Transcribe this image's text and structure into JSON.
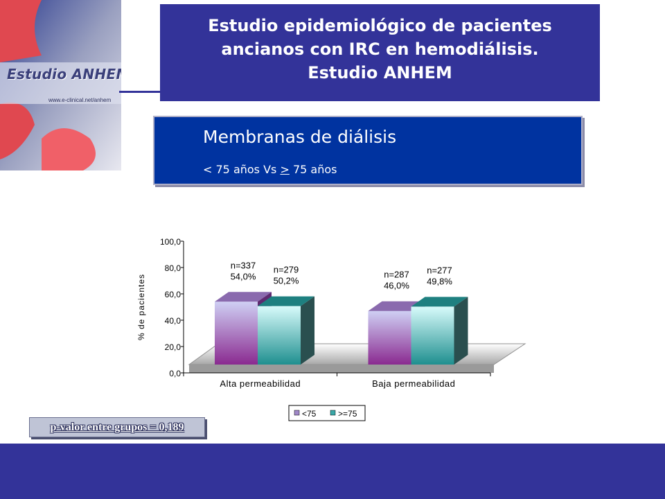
{
  "logo": {
    "title": "Estudio ANHEM",
    "url": "www.e-clinical.net/anhem"
  },
  "header": {
    "line1": "Estudio epidemiológico de pacientes",
    "line2": "ancianos con IRC en hemodiálisis.",
    "line3": "Estudio ANHEM"
  },
  "subtitle": {
    "main": "Membranas de diálisis",
    "sub_prefix": "< 75 años Vs ",
    "sub_underlined": ">",
    "sub_suffix": " 75 años"
  },
  "pvalue": "p-valor entre grupos = 0,189",
  "colors": {
    "header_bg": "#333399",
    "subtitle_bg": "#0033a0",
    "series_lt75": "#a88cd0",
    "series_ge75": "#3aa8a8"
  },
  "chart_data": {
    "type": "bar",
    "title": "",
    "xlabel": "",
    "ylabel": "% de pacientes",
    "ylim": [
      0,
      100
    ],
    "yticks": [
      "0,0",
      "20,0",
      "40,0",
      "60,0",
      "80,0",
      "100,0"
    ],
    "categories": [
      "Alta permeabilidad",
      "Baja permeabilidad"
    ],
    "series": [
      {
        "name": "<75",
        "values": [
          54.0,
          46.0
        ],
        "labels": [
          "n=337\n54,0%",
          "n=287\n46,0%"
        ]
      },
      {
        "name": ">=75",
        "values": [
          50.2,
          49.8
        ],
        "labels": [
          "n=279\n50,2%",
          "n=277\n49,8%"
        ]
      }
    ],
    "legend": "bottom",
    "grid": false
  }
}
